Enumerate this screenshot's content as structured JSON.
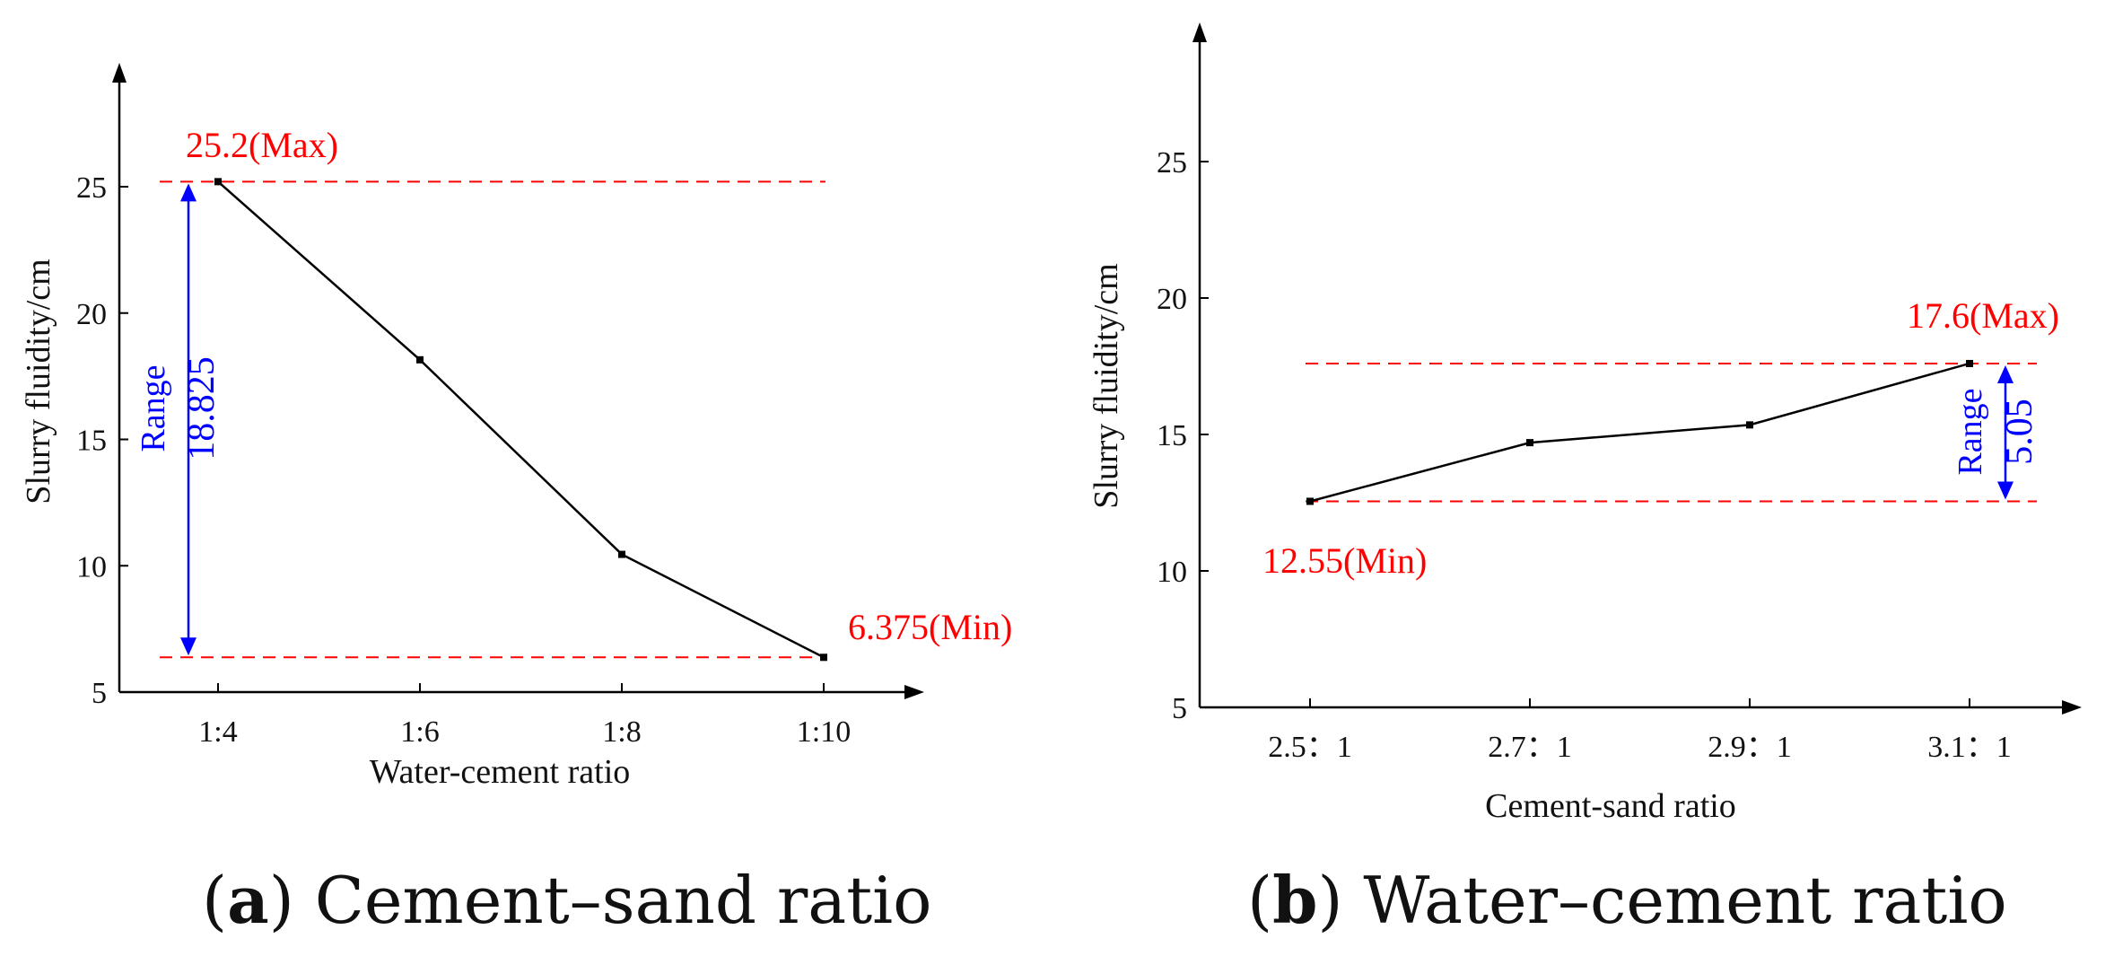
{
  "chart_data": [
    {
      "type": "line",
      "panel": "a",
      "x": [
        "1:4",
        "1:6",
        "1:8",
        "1:10"
      ],
      "values": [
        25.2,
        18.15,
        10.45,
        6.375
      ],
      "xlabel": "Water-cement ratio",
      "ylabel": "Slurry fluidity/cm",
      "yticks": [
        5,
        10,
        15,
        20,
        25
      ],
      "ylim": [
        5,
        29.5
      ],
      "max_label": "25.2(Max)",
      "min_label": "6.375(Min)",
      "range_word": "Range",
      "range_value": "18.825",
      "caption_letter": "a",
      "caption_text": "Cement–sand ratio"
    },
    {
      "type": "line",
      "panel": "b",
      "x": [
        "2.5：1",
        "2.7：1",
        "2.9：1",
        "3.1：1"
      ],
      "values": [
        12.55,
        14.7,
        15.35,
        17.6
      ],
      "xlabel": "Cement-sand ratio",
      "ylabel": "Slurry fluidity/cm",
      "yticks": [
        5,
        10,
        15,
        20,
        25
      ],
      "ylim": [
        5,
        30
      ],
      "max_label": "17.6(Max)",
      "min_label": "12.55(Min)",
      "range_word": "Range",
      "range_value": "5.05",
      "caption_letter": "b",
      "caption_text": "Water–cement ratio"
    }
  ],
  "colors": {
    "line": "#000000",
    "annotation": "#ff0000",
    "range": "#0000ff"
  }
}
